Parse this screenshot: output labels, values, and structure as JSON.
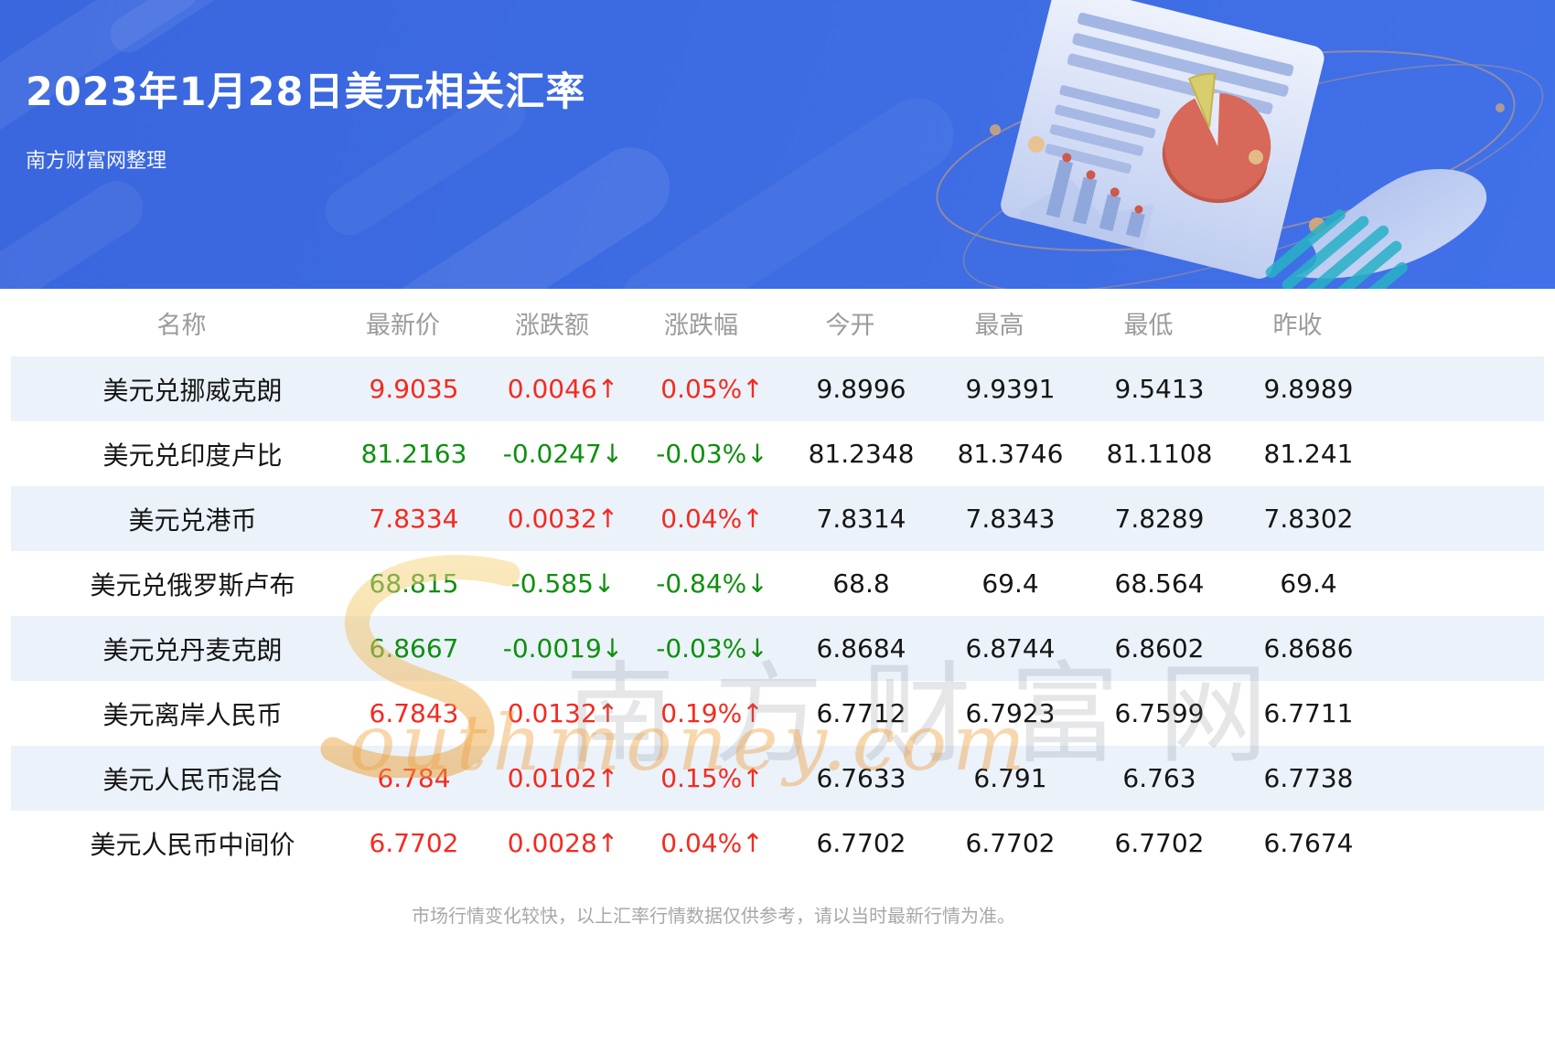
{
  "banner": {
    "title": "2023年1月28日美元相关汇率",
    "subtitle": "南方财富网整理"
  },
  "chart_data": {
    "type": "table",
    "title": "2023年1月28日美元相关汇率",
    "columns": [
      "名称",
      "最新价",
      "涨跌额",
      "涨跌幅",
      "今开",
      "最高",
      "最低",
      "昨收"
    ],
    "rows": [
      {
        "name": "美元兑挪威克朗",
        "latest": "9.9035",
        "change": "0.0046↑",
        "change_pct": "0.05%↑",
        "open": "9.8996",
        "high": "9.9391",
        "low": "9.5413",
        "prev_close": "9.8989",
        "trend": "up"
      },
      {
        "name": "美元兑印度卢比",
        "latest": "81.2163",
        "change": "-0.0247↓",
        "change_pct": "-0.03%↓",
        "open": "81.2348",
        "high": "81.3746",
        "low": "81.1108",
        "prev_close": "81.241",
        "trend": "down"
      },
      {
        "name": "美元兑港币",
        "latest": "7.8334",
        "change": "0.0032↑",
        "change_pct": "0.04%↑",
        "open": "7.8314",
        "high": "7.8343",
        "low": "7.8289",
        "prev_close": "7.8302",
        "trend": "up"
      },
      {
        "name": "美元兑俄罗斯卢布",
        "latest": "68.815",
        "change": "-0.585↓",
        "change_pct": "-0.84%↓",
        "open": "68.8",
        "high": "69.4",
        "low": "68.564",
        "prev_close": "69.4",
        "trend": "down"
      },
      {
        "name": "美元兑丹麦克朗",
        "latest": "6.8667",
        "change": "-0.0019↓",
        "change_pct": "-0.03%↓",
        "open": "6.8684",
        "high": "6.8744",
        "low": "6.8602",
        "prev_close": "6.8686",
        "trend": "down"
      },
      {
        "name": "美元离岸人民币",
        "latest": "6.7843",
        "change": "0.0132↑",
        "change_pct": "0.19%↑",
        "open": "6.7712",
        "high": "6.7923",
        "low": "6.7599",
        "prev_close": "6.7711",
        "trend": "up"
      },
      {
        "name": "美元人民币混合",
        "latest": "6.784",
        "change": "0.0102↑",
        "change_pct": "0.15%↑",
        "open": "6.7633",
        "high": "6.791",
        "low": "6.763",
        "prev_close": "6.7738",
        "trend": "up"
      },
      {
        "name": "美元人民币中间价",
        "latest": "6.7702",
        "change": "0.0028↑",
        "change_pct": "0.04%↑",
        "open": "6.7702",
        "high": "6.7702",
        "low": "6.7702",
        "prev_close": "6.7674",
        "trend": "up"
      }
    ]
  },
  "watermark": {
    "cn": "南方财富网",
    "en": "outhmoney.com"
  },
  "footer": {
    "disclaimer": "市场行情变化较快，以上汇率行情数据仅供参考，请以当时最新行情为准。"
  },
  "colors": {
    "up": "#f42a20",
    "down": "#0f8f0f",
    "banner": "#3d6ce3",
    "stripe": "#ebf2fa",
    "watermark-orange": "#efa13e"
  }
}
